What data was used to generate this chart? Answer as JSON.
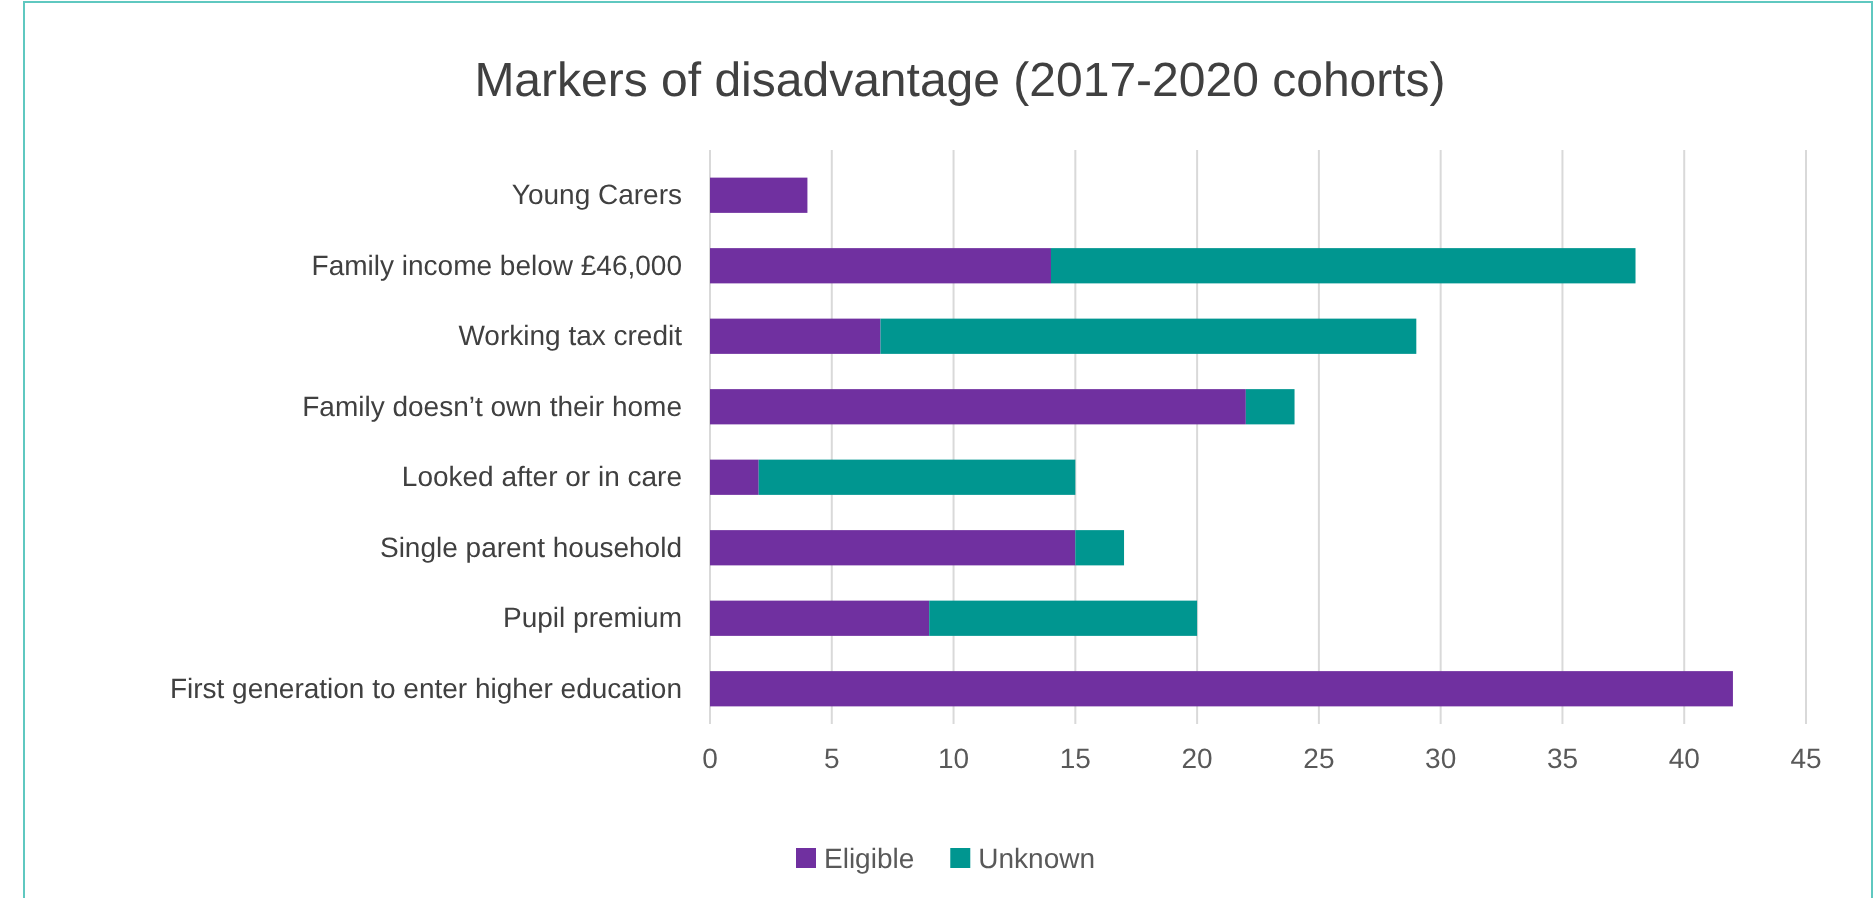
{
  "chart_data": {
    "type": "bar",
    "orientation": "horizontal",
    "stacked": true,
    "title": "Markers of disadvantage (2017-2020 cohorts)",
    "categories": [
      "Young Carers",
      "Family income below £46,000",
      "Working tax credit",
      "Family doesn’t own their home",
      "Looked after or in care",
      "Single parent household",
      "Pupil premium",
      "First generation to enter higher education"
    ],
    "series": [
      {
        "name": "Eligible",
        "color": "#7030a0",
        "values": [
          4,
          14,
          7,
          22,
          2,
          15,
          9,
          42
        ]
      },
      {
        "name": "Unknown",
        "color": "#009690",
        "values": [
          0,
          24,
          22,
          2,
          13,
          2,
          11,
          0
        ]
      }
    ],
    "xlim": [
      0,
      45
    ],
    "xticks": [
      0,
      5,
      10,
      15,
      20,
      25,
      30,
      35,
      40,
      45
    ],
    "grid": "x",
    "legend": "bottom"
  }
}
